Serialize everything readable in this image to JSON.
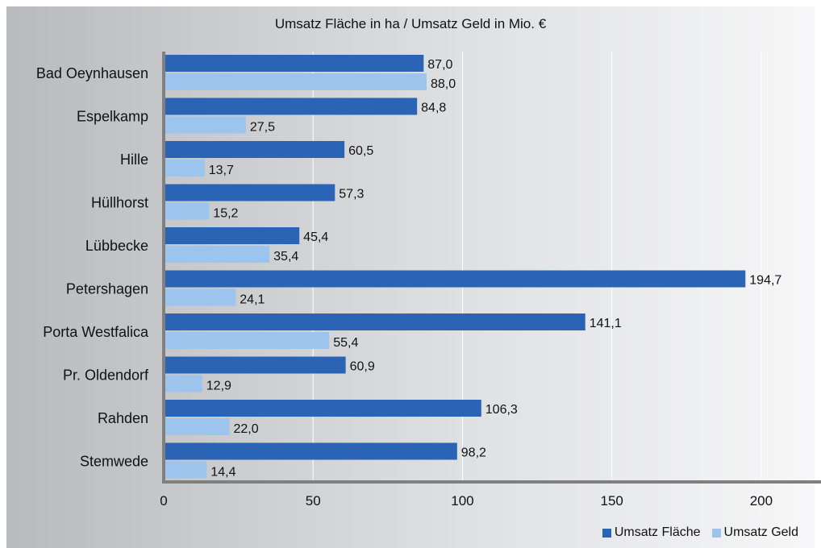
{
  "colors": {
    "series_flaeche": "#2B63B5",
    "series_geld": "#9DC4EC",
    "axis": "#808080",
    "grid": "#ffffff"
  },
  "chart_data": {
    "type": "bar",
    "orientation": "horizontal",
    "title": "Umsatz Fläche in ha / Umsatz Geld in Mio. €",
    "categories": [
      "Bad Oeynhausen",
      "Espelkamp",
      "Hille",
      "Hüllhorst",
      "Lübbecke",
      "Petershagen",
      "Porta Westfalica",
      "Pr. Oldendorf",
      "Rahden",
      "Stemwede"
    ],
    "series": [
      {
        "name": "Umsatz Fläche",
        "values": [
          87.0,
          84.8,
          60.5,
          57.3,
          45.4,
          194.7,
          141.1,
          60.9,
          106.3,
          98.2
        ],
        "labels": [
          "87,0",
          "84,8",
          "60,5",
          "57,3",
          "45,4",
          "194,7",
          "141,1",
          "60,9",
          "106,3",
          "98,2"
        ]
      },
      {
        "name": "Umsatz Geld",
        "values": [
          88.0,
          27.5,
          13.7,
          15.2,
          35.4,
          24.1,
          55.4,
          12.9,
          22.0,
          14.4
        ],
        "labels": [
          "88,0",
          "27,5",
          "13,7",
          "15,2",
          "35,4",
          "24,1",
          "55,4",
          "12,9",
          "22,0",
          "14,4"
        ]
      }
    ],
    "xlim": [
      0,
      220
    ],
    "x_ticks": [
      0,
      50,
      100,
      150,
      200
    ],
    "grid": true,
    "legend_position": "bottom-right"
  }
}
